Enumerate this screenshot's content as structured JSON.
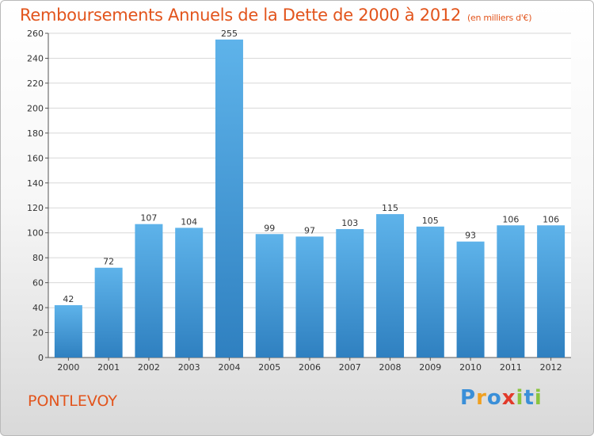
{
  "header": {
    "title": "Remboursements Annuels de la Dette de 2000 à 2012",
    "subtitle": "(en milliers d'€)"
  },
  "footer": {
    "city": "PONTLEVOY",
    "logo_letters": [
      "P",
      "r",
      "o",
      "x",
      "i",
      "t",
      "i"
    ],
    "logo_colors": [
      "#3a8fd8",
      "#f0a020",
      "#3a8fd8",
      "#e23a2a",
      "#8ac43f",
      "#3a8fd8",
      "#8ac43f"
    ]
  },
  "colors": {
    "title": "#e2541c",
    "bar_top": "#5eb3ea",
    "bar_bottom": "#2f80c0"
  },
  "chart_data": {
    "type": "bar",
    "title": "Remboursements Annuels de la Dette de 2000 à 2012",
    "xlabel": "",
    "ylabel": "",
    "categories": [
      "2000",
      "2001",
      "2002",
      "2003",
      "2004",
      "2005",
      "2006",
      "2007",
      "2008",
      "2009",
      "2010",
      "2011",
      "2012"
    ],
    "values": [
      42,
      72,
      107,
      104,
      255,
      99,
      97,
      103,
      115,
      105,
      93,
      106,
      106
    ],
    "ylim": [
      0,
      260
    ],
    "yticks": [
      0,
      20,
      40,
      60,
      80,
      100,
      120,
      140,
      160,
      180,
      200,
      220,
      240,
      260
    ],
    "grid": "horizontal"
  }
}
